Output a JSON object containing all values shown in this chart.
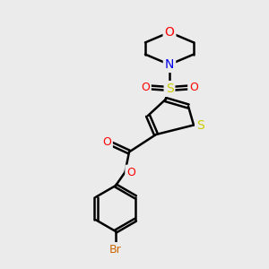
{
  "bg_color": "#ebebeb",
  "bond_color": "#000000",
  "bond_width": 1.8,
  "atom_colors": {
    "S_sulfonyl": "#cccc00",
    "S_thiophene": "#cccc00",
    "O_sulfonyl": "#ff0000",
    "O_morpholine": "#ff0000",
    "O_carbonyl": "#ff0000",
    "O_ester": "#ff0000",
    "N": "#0000ee",
    "Br": "#cc6600"
  },
  "font_size": 9,
  "fig_width": 3.0,
  "fig_height": 3.0,
  "xlim": [
    0,
    10
  ],
  "ylim": [
    0,
    10
  ]
}
